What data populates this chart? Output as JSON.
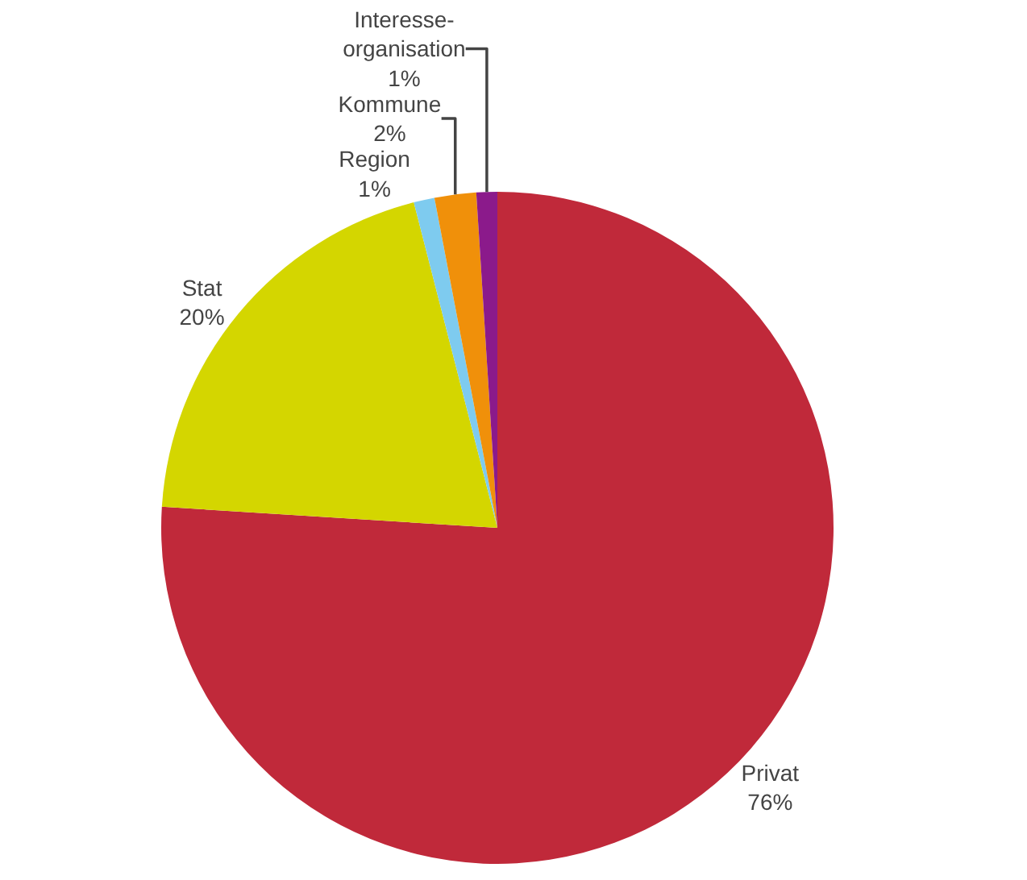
{
  "chart_data": {
    "type": "pie",
    "categories": [
      "Privat",
      "Stat",
      "Region",
      "Kommune",
      "Interesse-organisation"
    ],
    "values": [
      76,
      20,
      1,
      2,
      1
    ],
    "value_labels": [
      "76%",
      "20%",
      "1%",
      "2%",
      "1%"
    ],
    "colors": [
      "#c0293a",
      "#d4d600",
      "#7ecbef",
      "#f0900a",
      "#8b1a8b"
    ],
    "legend": false
  }
}
